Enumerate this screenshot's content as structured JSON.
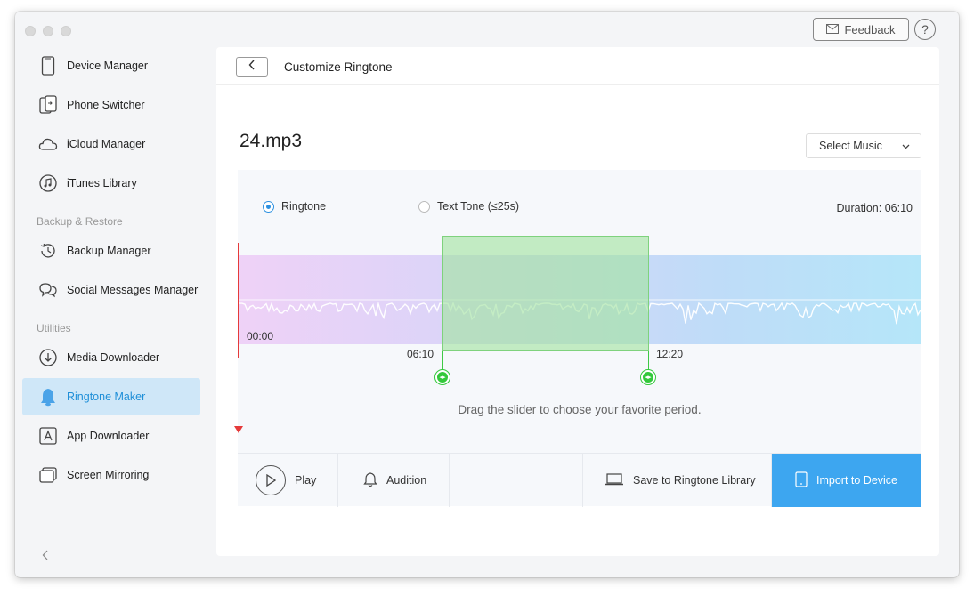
{
  "window": {
    "feedback_label": "Feedback",
    "help_label": "?"
  },
  "sidebar": {
    "items": [
      {
        "label": "Device Manager",
        "icon": "phone-icon"
      },
      {
        "label": "Phone Switcher",
        "icon": "phone-switch-icon"
      },
      {
        "label": "iCloud Manager",
        "icon": "cloud-icon"
      },
      {
        "label": "iTunes Library",
        "icon": "music-note-icon"
      },
      {
        "label": "Backup Manager",
        "icon": "history-icon"
      },
      {
        "label": "Social Messages Manager",
        "icon": "chat-icon"
      },
      {
        "label": "Media Downloader",
        "icon": "download-icon"
      },
      {
        "label": "Ringtone Maker",
        "icon": "bell-icon",
        "active": true
      },
      {
        "label": "App Downloader",
        "icon": "app-store-icon"
      },
      {
        "label": "Screen Mirroring",
        "icon": "screen-mirror-icon"
      }
    ],
    "sections": {
      "backup": "Backup & Restore",
      "utilities": "Utilities"
    }
  },
  "header": {
    "title": "Customize Ringtone"
  },
  "editor": {
    "file_name": "24.mp3",
    "select_music_label": "Select Music",
    "mode_ringtone": "Ringtone",
    "mode_texttone": "Text Tone (≤25s)",
    "duration": "Duration: 06:10",
    "time_start": "00:00",
    "selection_start": "06:10",
    "selection_end": "12:20",
    "hint": "Drag the slider to choose your favorite period."
  },
  "actions": {
    "play": "Play",
    "audition": "Audition",
    "save": "Save to Ringtone Library",
    "import": "Import to Device"
  },
  "colors": {
    "accent": "#3da6f0",
    "active_bg": "#cfe7f8",
    "selection": "#a2e4a0",
    "playhead": "#e53a3a"
  }
}
